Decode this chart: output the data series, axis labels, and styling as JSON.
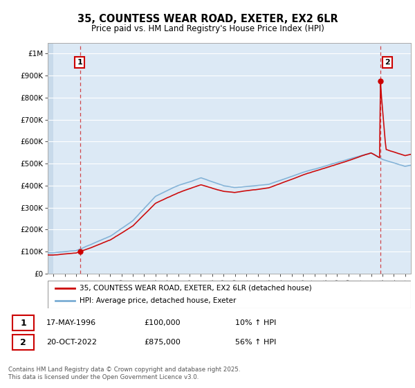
{
  "title": "35, COUNTESS WEAR ROAD, EXETER, EX2 6LR",
  "subtitle": "Price paid vs. HM Land Registry's House Price Index (HPI)",
  "legend_line1": "35, COUNTESS WEAR ROAD, EXETER, EX2 6LR (detached house)",
  "legend_line2": "HPI: Average price, detached house, Exeter",
  "annotation1_date": "17-MAY-1996",
  "annotation1_price": "£100,000",
  "annotation1_hpi": "10% ↑ HPI",
  "annotation2_date": "20-OCT-2022",
  "annotation2_price": "£875,000",
  "annotation2_hpi": "56% ↑ HPI",
  "footer": "Contains HM Land Registry data © Crown copyright and database right 2025.\nThis data is licensed under the Open Government Licence v3.0.",
  "red_color": "#cc0000",
  "blue_color": "#7aadd4",
  "bg_color": "#dce9f5",
  "hatch_color": "#c8daea",
  "sale1_year": 1996.37,
  "sale1_price": 100000,
  "sale2_year": 2022.8,
  "sale2_price": 875000,
  "ylim_max": 1050000,
  "xlim_min": 1993.5,
  "xlim_max": 2025.5
}
